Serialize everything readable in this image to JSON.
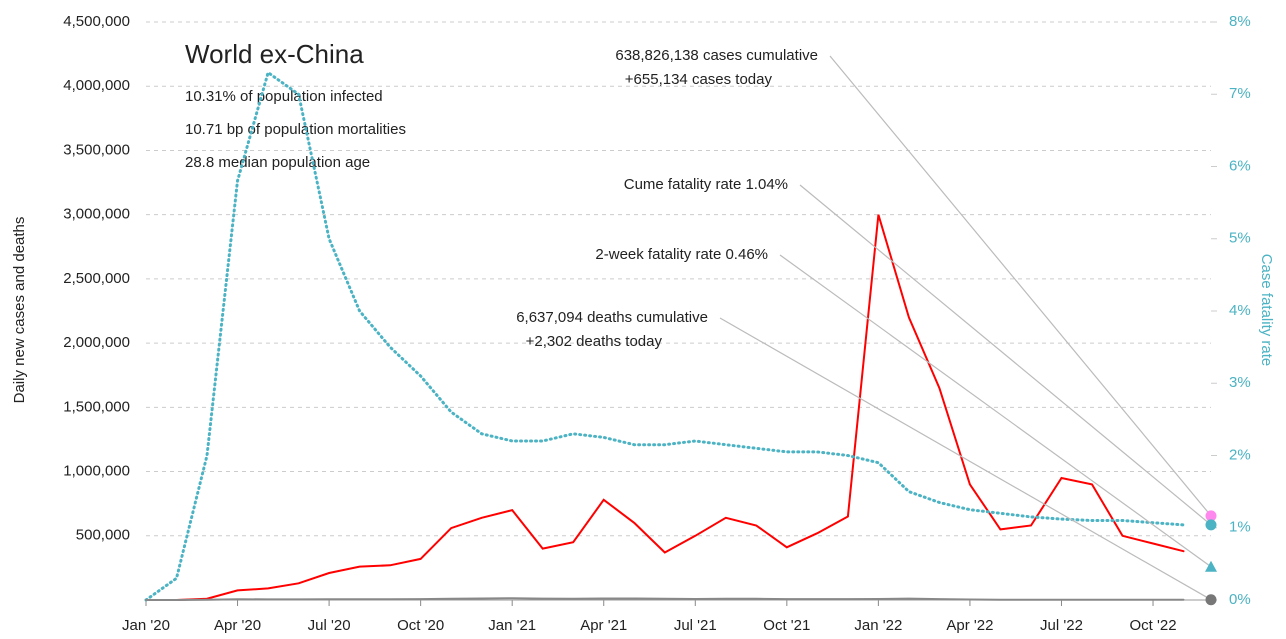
{
  "chart_data": {
    "type": "line",
    "title": "World ex-China",
    "subtitle": [
      "10.31% of population infected",
      "10.71 bp of population mortalities",
      "28.8 median population age"
    ],
    "ylabel": "Daily new cases and deaths",
    "y2label": "Case fatality rate",
    "x": [
      "2020-01",
      "2020-02",
      "2020-03",
      "2020-04",
      "2020-05",
      "2020-06",
      "2020-07",
      "2020-08",
      "2020-09",
      "2020-10",
      "2020-11",
      "2020-12",
      "2021-01",
      "2021-02",
      "2021-03",
      "2021-04",
      "2021-05",
      "2021-06",
      "2021-07",
      "2021-08",
      "2021-09",
      "2021-10",
      "2021-11",
      "2021-12",
      "2022-01",
      "2022-02",
      "2022-03",
      "2022-04",
      "2022-05",
      "2022-06",
      "2022-07",
      "2022-08",
      "2022-09",
      "2022-10",
      "2022-11"
    ],
    "xticks": [
      {
        "value": "2020-01",
        "label": "Jan '20"
      },
      {
        "value": "2020-04",
        "label": "Apr '20"
      },
      {
        "value": "2020-07",
        "label": "Jul '20"
      },
      {
        "value": "2020-10",
        "label": "Oct '20"
      },
      {
        "value": "2021-01",
        "label": "Jan '21"
      },
      {
        "value": "2021-04",
        "label": "Apr '21"
      },
      {
        "value": "2021-07",
        "label": "Jul '21"
      },
      {
        "value": "2021-10",
        "label": "Oct '21"
      },
      {
        "value": "2022-01",
        "label": "Jan '22"
      },
      {
        "value": "2022-04",
        "label": "Apr '22"
      },
      {
        "value": "2022-07",
        "label": "Jul '22"
      },
      {
        "value": "2022-10",
        "label": "Oct '22"
      }
    ],
    "ylim": [
      0,
      4500000
    ],
    "yticks": [
      {
        "value": 500000,
        "label": "500,000"
      },
      {
        "value": 1000000,
        "label": "1,000,000"
      },
      {
        "value": 1500000,
        "label": "1,500,000"
      },
      {
        "value": 2000000,
        "label": "2,000,000"
      },
      {
        "value": 2500000,
        "label": "2,500,000"
      },
      {
        "value": 3000000,
        "label": "3,000,000"
      },
      {
        "value": 3500000,
        "label": "3,500,000"
      },
      {
        "value": 4000000,
        "label": "4,000,000"
      },
      {
        "value": 4500000,
        "label": "4,500,000"
      }
    ],
    "y2lim": [
      0,
      8
    ],
    "y2ticks": [
      {
        "value": 0,
        "label": "0%"
      },
      {
        "value": 1,
        "label": "1%"
      },
      {
        "value": 2,
        "label": "2%"
      },
      {
        "value": 3,
        "label": "3%"
      },
      {
        "value": 4,
        "label": "4%"
      },
      {
        "value": 5,
        "label": "5%"
      },
      {
        "value": 6,
        "label": "6%"
      },
      {
        "value": 7,
        "label": "7%"
      },
      {
        "value": 8,
        "label": "8%"
      }
    ],
    "grid": true,
    "series": [
      {
        "color": "#ff0000",
        "style": "solid",
        "values": [
          0,
          0,
          10000,
          75000,
          90000,
          130000,
          210000,
          260000,
          270000,
          320000,
          560000,
          640000,
          700000,
          400000,
          450000,
          780000,
          600000,
          370000,
          500000,
          640000,
          580000,
          410000,
          520000,
          650000,
          3000000,
          2200000,
          1650000,
          900000,
          550000,
          580000,
          950000,
          900000,
          500000,
          440000,
          380000
        ]
      },
      {
        "color": "#4bb3c3",
        "style": "dotted",
        "axis": "y2",
        "values": [
          0,
          0.3,
          2.0,
          5.8,
          7.3,
          7.0,
          5.0,
          4.0,
          3.5,
          3.1,
          2.6,
          2.3,
          2.2,
          2.2,
          2.3,
          2.25,
          2.15,
          2.15,
          2.2,
          2.15,
          2.1,
          2.05,
          2.05,
          2.0,
          1.9,
          1.5,
          1.35,
          1.25,
          1.2,
          1.15,
          1.12,
          1.1,
          1.1,
          1.07,
          1.04
        ]
      },
      {
        "color": "#888888",
        "style": "solid",
        "values": [
          0,
          0,
          2000,
          6000,
          5000,
          5000,
          6000,
          6000,
          6000,
          7000,
          10000,
          12000,
          14000,
          11000,
          9000,
          12000,
          12000,
          9000,
          8000,
          10000,
          9000,
          7000,
          7000,
          7000,
          8000,
          11000,
          7000,
          4000,
          2500,
          2000,
          2500,
          2500,
          2000,
          1500,
          1500
        ]
      }
    ],
    "annotations": [
      {
        "text": [
          "638,826,138 cases cumulative",
          "+655,134 cases today"
        ],
        "value": 655134,
        "color": "#ff88ee",
        "marker": "circle"
      },
      {
        "text": [
          "Cume fatality rate 1.04%"
        ],
        "value": 1.04,
        "axis": "y2",
        "color": "#4bb3c3",
        "marker": "circle"
      },
      {
        "text": [
          "2-week fatality rate 0.46%"
        ],
        "value": 0.46,
        "axis": "y2",
        "color": "#4bb3c3",
        "marker": "triangle"
      },
      {
        "text": [
          "6,637,094 deaths cumulative",
          "+2,302 deaths today"
        ],
        "value": 2302,
        "color": "#777777",
        "marker": "circle"
      }
    ]
  }
}
